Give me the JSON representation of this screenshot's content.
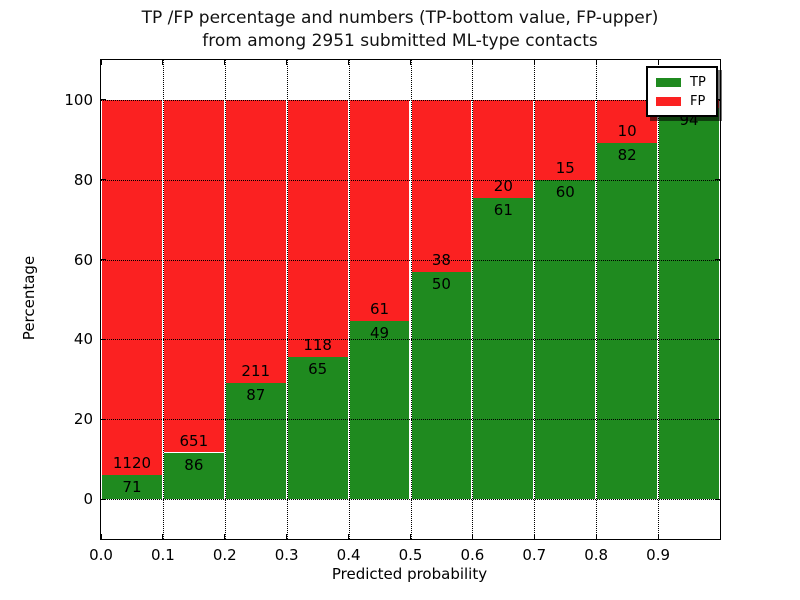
{
  "title": {
    "line1": "TP /FP percentage and numbers (TP-bottom value, FP-upper)",
    "line2": "from among 2951 submitted ML-type contacts"
  },
  "colors": {
    "tp_green": "#1f8a1f",
    "fp_red": "#fb2121",
    "grid": "#000000",
    "text": "#000000",
    "background": "#ffffff"
  },
  "chart_data": {
    "type": "bar",
    "stacked": true,
    "normalized_to_percent": true,
    "title": "TP /FP percentage and numbers (TP-bottom value, FP-upper) from among 2951 submitted ML-type contacts",
    "xlabel": "Predicted probability",
    "ylabel": "Percentage",
    "xlim": [
      0.0,
      1.0
    ],
    "ylim": [
      -10,
      110
    ],
    "yticks": [
      "0",
      "20",
      "40",
      "60",
      "80",
      "100"
    ],
    "ytick_values": [
      0,
      20,
      40,
      60,
      80,
      100
    ],
    "xticks": [
      "0.0",
      "0.1",
      "0.2",
      "0.3",
      "0.4",
      "0.5",
      "0.6",
      "0.7",
      "0.8",
      "0.9"
    ],
    "xtick_values": [
      0.0,
      0.1,
      0.2,
      0.3,
      0.4,
      0.5,
      0.6,
      0.7,
      0.8,
      0.9
    ],
    "grid": true,
    "bin_width": 0.1,
    "total_contacts": 2951,
    "legend": {
      "position": "upper right",
      "entries": [
        {
          "label": "TP",
          "color": "#1f8a1f"
        },
        {
          "label": "FP",
          "color": "#fb2121"
        }
      ]
    },
    "bins": [
      {
        "x0": 0.0,
        "x1": 0.1,
        "tp": 71,
        "fp": 1120,
        "tp_label": "71",
        "fp_label": "1120"
      },
      {
        "x0": 0.1,
        "x1": 0.2,
        "tp": 86,
        "fp": 651,
        "tp_label": "86",
        "fp_label": "651"
      },
      {
        "x0": 0.2,
        "x1": 0.3,
        "tp": 87,
        "fp": 211,
        "tp_label": "87",
        "fp_label": "211"
      },
      {
        "x0": 0.3,
        "x1": 0.4,
        "tp": 65,
        "fp": 118,
        "tp_label": "65",
        "fp_label": "118"
      },
      {
        "x0": 0.4,
        "x1": 0.5,
        "tp": 49,
        "fp": 61,
        "tp_label": "49",
        "fp_label": "61"
      },
      {
        "x0": 0.5,
        "x1": 0.6,
        "tp": 50,
        "fp": 38,
        "tp_label": "50",
        "fp_label": "38"
      },
      {
        "x0": 0.6,
        "x1": 0.7,
        "tp": 61,
        "fp": 20,
        "tp_label": "61",
        "fp_label": "20"
      },
      {
        "x0": 0.7,
        "x1": 0.8,
        "tp": 60,
        "fp": 15,
        "tp_label": "60",
        "fp_label": "15"
      },
      {
        "x0": 0.8,
        "x1": 0.9,
        "tp": 82,
        "fp": 10,
        "tp_label": "82",
        "fp_label": "10"
      },
      {
        "x0": 0.9,
        "x1": 1.0,
        "tp": 94,
        "fp": 2,
        "tp_label": "94",
        "fp_label": ""
      }
    ]
  }
}
